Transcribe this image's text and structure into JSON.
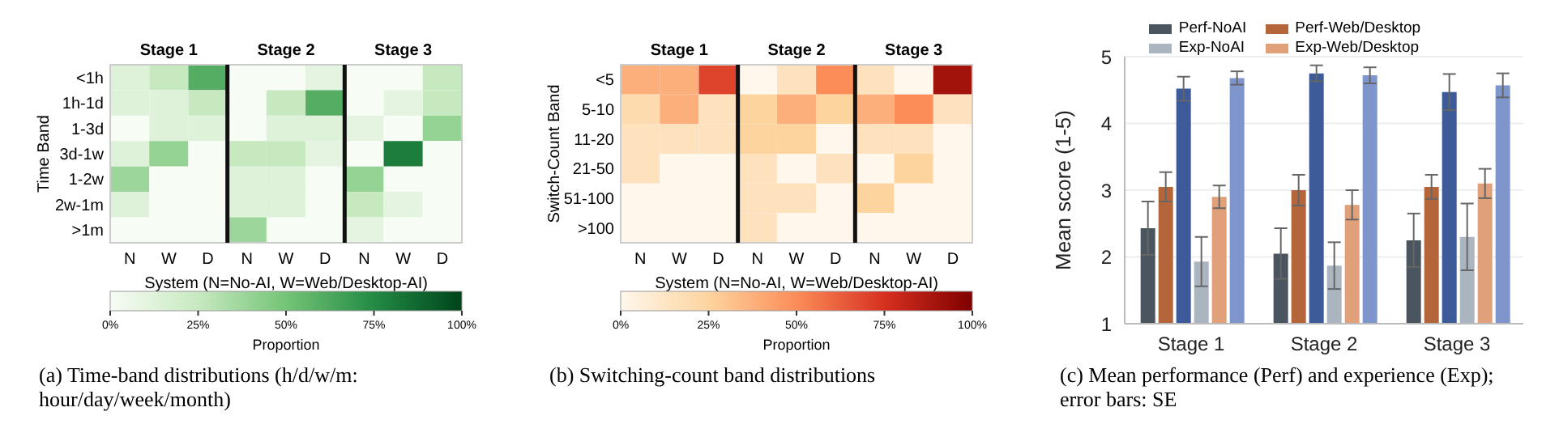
{
  "chart_data": [
    {
      "type": "heatmap",
      "categories": [
        "N",
        "W",
        "D",
        "N",
        "W",
        "D",
        "N",
        "W",
        "D"
      ],
      "y_categories": [
        "<1h",
        "1h-1d",
        "1-3d",
        "3d-1w",
        "1-2w",
        "2w-1m",
        ">1m"
      ],
      "cells": [
        [
          0.13,
          0.25,
          0.6,
          0,
          0,
          0.1,
          0,
          0,
          0.25
        ],
        [
          0.13,
          0.13,
          0.25,
          0,
          0.25,
          0.6,
          0,
          0.1,
          0.25
        ],
        [
          0,
          0.13,
          0.13,
          0,
          0.13,
          0.13,
          0.1,
          0,
          0.4
        ],
        [
          0.13,
          0.4,
          0,
          0.25,
          0.25,
          0.1,
          0,
          0.8,
          0
        ],
        [
          0.38,
          0,
          0,
          0.13,
          0.13,
          0,
          0.4,
          0,
          0
        ],
        [
          0.13,
          0,
          0,
          0.13,
          0.13,
          0,
          0.25,
          0.1,
          0
        ],
        [
          0,
          0,
          0,
          0.38,
          0,
          0,
          0.1,
          0,
          0
        ]
      ],
      "clim": [
        0,
        1
      ],
      "cticks": [
        {
          "value": 0,
          "label": "0%"
        },
        {
          "value": 0.25,
          "label": "25%"
        },
        {
          "value": 0.5,
          "label": "50%"
        },
        {
          "value": 0.75,
          "label": "75%"
        },
        {
          "value": 1,
          "label": "100%"
        }
      ],
      "xlabel": "System (N=No-AI, W=Web/Desktop-AI)",
      "ylabel": "Time Band",
      "clabel": "Proportion",
      "annotations": [
        "Stage 1",
        "Stage 2",
        "Stage 3",
        "(a) Time-band distributions (h/d/w/m: hour/day/week/month)"
      ]
    },
    {
      "type": "heatmap",
      "categories": [
        "N",
        "W",
        "D",
        "N",
        "W",
        "D",
        "N",
        "W",
        "D"
      ],
      "y_categories": [
        "<5",
        "5-10",
        "11-20",
        "21-50",
        "51-100",
        ">100"
      ],
      "cells": [
        [
          0.38,
          0.38,
          0.7,
          0,
          0.15,
          0.5,
          0.15,
          0,
          0.9
        ],
        [
          0.2,
          0.38,
          0.15,
          0.25,
          0.38,
          0.25,
          0.38,
          0.5,
          0.15
        ],
        [
          0.15,
          0.15,
          0.15,
          0.25,
          0.25,
          0,
          0.15,
          0.15,
          0
        ],
        [
          0.15,
          0,
          0,
          0.15,
          0,
          0.15,
          0,
          0.25,
          0
        ],
        [
          0,
          0,
          0,
          0.15,
          0.15,
          0,
          0.25,
          0,
          0
        ],
        [
          0,
          0,
          0,
          0.15,
          0,
          0,
          0,
          0,
          0
        ]
      ],
      "clim": [
        0,
        1
      ],
      "cticks": [
        {
          "value": 0,
          "label": "0%"
        },
        {
          "value": 0.25,
          "label": "25%"
        },
        {
          "value": 0.5,
          "label": "50%"
        },
        {
          "value": 0.75,
          "label": "75%"
        },
        {
          "value": 1,
          "label": "100%"
        }
      ],
      "xlabel": "System (N=No-AI, W=Web/Desktop-AI)",
      "ylabel": "Switch-Count Band",
      "clabel": "Proportion",
      "annotations": [
        "Stage 1",
        "Stage 2",
        "Stage 3",
        "(b) Switching-count band distributions"
      ]
    },
    {
      "type": "bar",
      "categories": [
        "Stage 1",
        "Stage 2",
        "Stage 3"
      ],
      "ylabel": "Mean score (1-5)",
      "ylim": [
        1,
        5
      ],
      "yticks": [
        1,
        2,
        3,
        4,
        5
      ],
      "grid": "y",
      "legend": "top",
      "series": [
        {
          "name": "Perf-NoAI",
          "color": "#4a5560",
          "values": [
            2.43,
            2.05,
            2.25
          ],
          "errors": [
            0.4,
            0.38,
            0.4
          ]
        },
        {
          "name": "Perf-Web/Desktop",
          "color": "#b5653a",
          "values": [
            3.05,
            3.0,
            3.05
          ],
          "errors": [
            0.22,
            0.23,
            0.18
          ]
        },
        {
          "color": "#3d5a99",
          "values": [
            4.52,
            4.75,
            4.47
          ],
          "errors": [
            0.18,
            0.12,
            0.27
          ]
        },
        {
          "name": "Exp-NoAI",
          "color": "#aab5bf",
          "values": [
            1.93,
            1.87,
            2.3
          ],
          "errors": [
            0.37,
            0.35,
            0.5
          ]
        },
        {
          "name": "Exp-Web/Desktop",
          "color": "#e0a07a",
          "values": [
            2.9,
            2.78,
            3.1
          ],
          "errors": [
            0.17,
            0.22,
            0.22
          ]
        },
        {
          "color": "#7f96cc",
          "values": [
            4.68,
            4.72,
            4.57
          ],
          "errors": [
            0.1,
            0.12,
            0.18
          ]
        }
      ],
      "annotations": [
        "(c) Mean performance (Perf) and experience (Exp); error bars: SE"
      ]
    }
  ]
}
